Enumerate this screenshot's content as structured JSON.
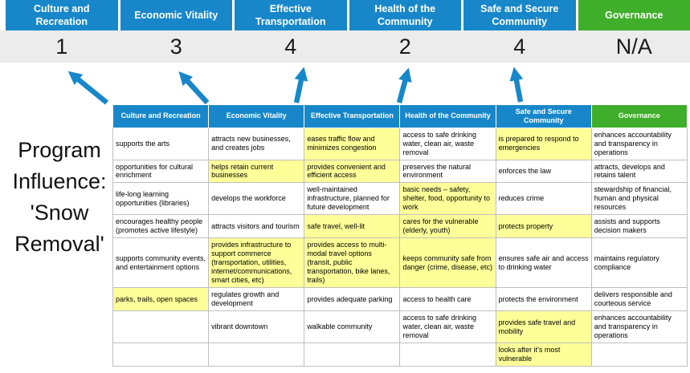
{
  "left_title": "Program Influence: 'Snow Removal'",
  "colors": {
    "blue": "#1787c9",
    "green": "#3fae2a",
    "highlight": "#ffff99",
    "score_bg": "#ececec",
    "border": "#bfbfbf"
  },
  "pillars": [
    {
      "label": "Culture and Recreation",
      "score": "1",
      "color": "blue"
    },
    {
      "label": "Economic Vitality",
      "score": "3",
      "color": "blue"
    },
    {
      "label": "Effective Transportation",
      "score": "4",
      "color": "blue"
    },
    {
      "label": "Health of the Community",
      "score": "2",
      "color": "blue"
    },
    {
      "label": "Safe and Secure Community",
      "score": "4",
      "color": "blue"
    },
    {
      "label": "Governance",
      "score": "N/A",
      "color": "green"
    }
  ],
  "table": {
    "headers": [
      {
        "label": "Culture and Recreation",
        "color": "blue"
      },
      {
        "label": "Economic Vitality",
        "color": "blue"
      },
      {
        "label": "Effective Transportation",
        "color": "blue"
      },
      {
        "label": "Health of the Community",
        "color": "blue"
      },
      {
        "label": "Safe and Secure Community",
        "color": "blue"
      },
      {
        "label": "Governance",
        "color": "green"
      }
    ],
    "rows": [
      [
        {
          "text": "supports the arts",
          "hl": false
        },
        {
          "text": "attracts new businesses, and creates jobs",
          "hl": false
        },
        {
          "text": "eases traffic flow and minimizes congestion",
          "hl": true
        },
        {
          "text": "access to safe drinking water, clean air, waste removal",
          "hl": false
        },
        {
          "text": "is prepared to respond to emergencies",
          "hl": true
        },
        {
          "text": "enhances accountability and transparency in operations",
          "hl": false
        }
      ],
      [
        {
          "text": "opportunities for cultural enrichment",
          "hl": false
        },
        {
          "text": "helps retain current businesses",
          "hl": true
        },
        {
          "text": "provides convenient and efficient access",
          "hl": true
        },
        {
          "text": "preserves the natural environment",
          "hl": false
        },
        {
          "text": "enforces the law",
          "hl": false
        },
        {
          "text": "attracts, develops and retains talent",
          "hl": false
        }
      ],
      [
        {
          "text": "life-long learning opportunities (libraries)",
          "hl": false
        },
        {
          "text": "develops the workforce",
          "hl": false
        },
        {
          "text": "well-maintained infrastructure, planned for future development",
          "hl": false
        },
        {
          "text": "basic needs – safety, shelter, food, opportunity to work",
          "hl": true
        },
        {
          "text": "reduces crime",
          "hl": false
        },
        {
          "text": "stewardship of financial, human and physical resources",
          "hl": false
        }
      ],
      [
        {
          "text": "encourages healthy people (promotes active lifestyle)",
          "hl": false
        },
        {
          "text": "attracts visitors and tourism",
          "hl": false
        },
        {
          "text": "safe travel, well-lit",
          "hl": true
        },
        {
          "text": "cares for the vulnerable (elderly, youth)",
          "hl": true
        },
        {
          "text": "protects property",
          "hl": true
        },
        {
          "text": "assists and supports decision makers",
          "hl": false
        }
      ],
      [
        {
          "text": "supports community events, and entertainment options",
          "hl": false
        },
        {
          "text": "provides infrastructure to support commerce (transportation, utilities, internet/communications, smart cities, etc)",
          "hl": true
        },
        {
          "text": "provides access to multi-modal travel options (transit, public transportation, bike lanes, trails)",
          "hl": true
        },
        {
          "text": "keeps community safe from danger (crime, disease, etc)",
          "hl": true
        },
        {
          "text": "ensures safe air and access to drinking water",
          "hl": false
        },
        {
          "text": "maintains regulatory compliance",
          "hl": false
        }
      ],
      [
        {
          "text": "parks, trails, open spaces",
          "hl": true
        },
        {
          "text": "regulates growth and development",
          "hl": false
        },
        {
          "text": "provides adequate parking",
          "hl": false
        },
        {
          "text": "access to health care",
          "hl": false
        },
        {
          "text": "protects the environment",
          "hl": false
        },
        {
          "text": "delivers responsible and courteous service",
          "hl": false
        }
      ],
      [
        {
          "text": "",
          "hl": false
        },
        {
          "text": "vibrant downtown",
          "hl": false
        },
        {
          "text": "walkable community",
          "hl": false
        },
        {
          "text": "access to safe drinking water, clean air, waste removal",
          "hl": false
        },
        {
          "text": "provides safe travel and mobility",
          "hl": true
        },
        {
          "text": "enhances accountability and transparency in operations",
          "hl": false
        }
      ],
      [
        {
          "text": "",
          "hl": false
        },
        {
          "text": "",
          "hl": false
        },
        {
          "text": "",
          "hl": false
        },
        {
          "text": "",
          "hl": false
        },
        {
          "text": "looks after it's most vulnerable",
          "hl": true
        },
        {
          "text": "",
          "hl": false
        }
      ]
    ]
  }
}
